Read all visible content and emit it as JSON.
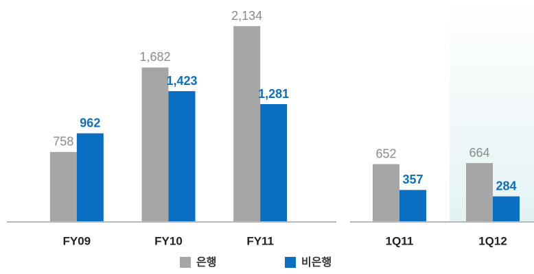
{
  "chart_data": [
    {
      "type": "bar",
      "categories": [
        "FY09",
        "FY10",
        "FY11"
      ],
      "series": [
        {
          "name": "은행",
          "color": "#a6a6a6",
          "values": [
            758,
            1682,
            2134
          ],
          "value_labels": [
            "758",
            "1,682",
            "2,134"
          ]
        },
        {
          "name": "비은행",
          "color": "#0a6fc2",
          "values": [
            962,
            1423,
            1281
          ],
          "value_labels": [
            "962",
            "1,423",
            "1,281"
          ]
        }
      ],
      "ylim": [
        0,
        2300
      ]
    },
    {
      "type": "bar",
      "categories": [
        "1Q11",
        "1Q12"
      ],
      "series": [
        {
          "color": "#a6a6a6",
          "values": [
            652,
            664
          ]
        },
        {
          "color": "#0a6fc2",
          "values": [
            357,
            284
          ]
        }
      ],
      "ylim": [
        0,
        2400
      ]
    }
  ]
}
